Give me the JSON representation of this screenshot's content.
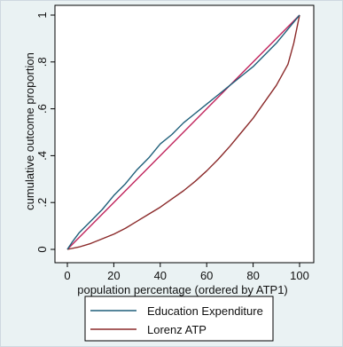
{
  "chart_data": {
    "type": "line",
    "xlabel": "population percentage (ordered by ATP1)",
    "ylabel": "cumulative outcome proportion",
    "xlim": [
      0,
      100
    ],
    "ylim": [
      0,
      1
    ],
    "x_ticks": [
      "0",
      "20",
      "40",
      "60",
      "80",
      "100"
    ],
    "y_ticks": [
      "0",
      ".2",
      ".4",
      ".6",
      ".8",
      "1"
    ],
    "grid": false,
    "legend_position": "bottom",
    "series": [
      {
        "name": "Education Expenditure",
        "color": "#1f5f7a",
        "x": [
          0,
          2,
          5,
          10,
          15,
          20,
          25,
          30,
          35,
          40,
          45,
          50,
          55,
          60,
          65,
          70,
          75,
          80,
          85,
          90,
          95,
          100
        ],
        "y": [
          0,
          0.03,
          0.07,
          0.12,
          0.17,
          0.23,
          0.28,
          0.34,
          0.39,
          0.45,
          0.49,
          0.54,
          0.58,
          0.62,
          0.66,
          0.7,
          0.74,
          0.78,
          0.83,
          0.88,
          0.94,
          1.0
        ]
      },
      {
        "name": "Lorenz ATP",
        "color": "#8b2a2a",
        "x": [
          0,
          5,
          10,
          15,
          20,
          25,
          30,
          35,
          40,
          45,
          50,
          55,
          60,
          65,
          70,
          75,
          80,
          85,
          90,
          95,
          97.5,
          100
        ],
        "y": [
          0,
          0.01,
          0.025,
          0.045,
          0.065,
          0.09,
          0.12,
          0.15,
          0.18,
          0.215,
          0.25,
          0.29,
          0.335,
          0.385,
          0.44,
          0.5,
          0.56,
          0.63,
          0.7,
          0.79,
          0.88,
          1.0
        ]
      },
      {
        "name": "",
        "color": "#c0245c",
        "x": [
          0,
          100
        ],
        "y": [
          0,
          1
        ]
      }
    ]
  }
}
